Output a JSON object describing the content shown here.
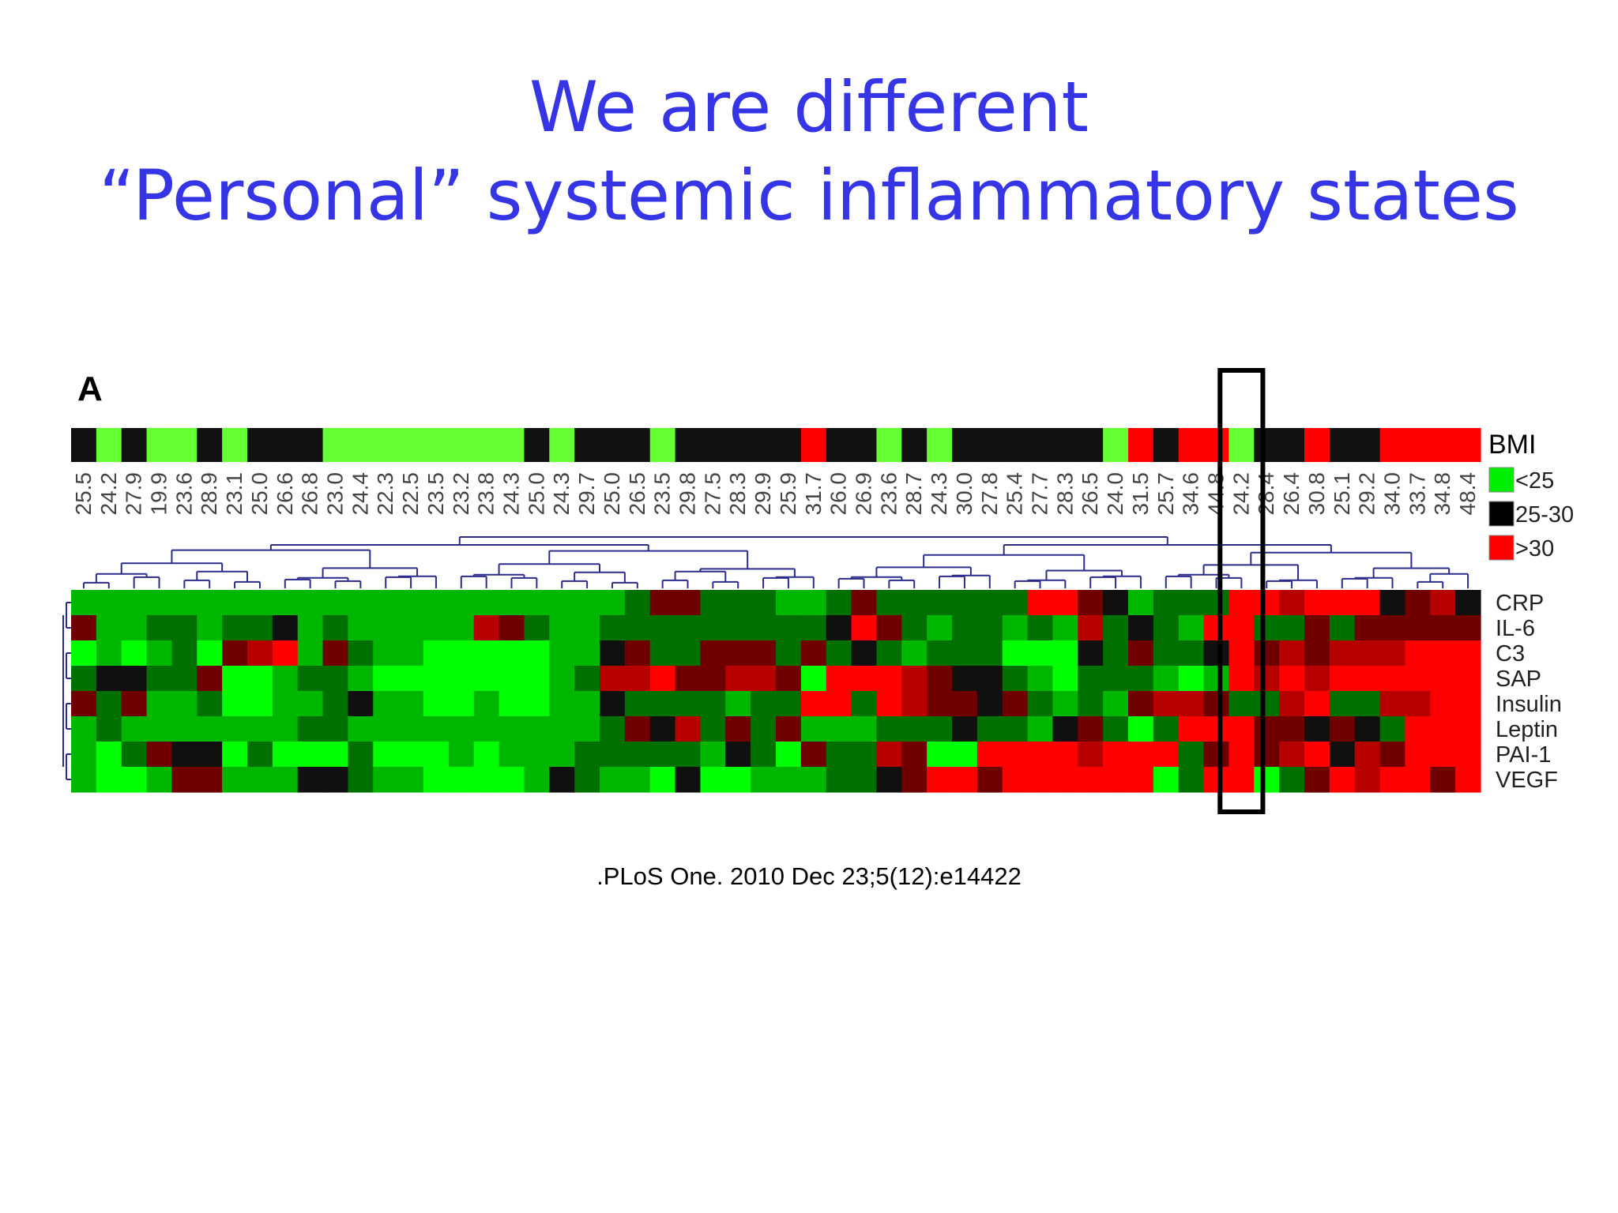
{
  "slide": {
    "title_line1": "We are different",
    "title_line2": "“Personal” systemic inflammatory states",
    "citation": ".PLoS One. 2010 Dec 23;5(12):e14422"
  },
  "colors": {
    "title": "#3535e6",
    "bmi_green": "#66ff33",
    "bmi_black": "#111111",
    "bmi_red": "#ff0000",
    "dendrogram": "#2b2b8a",
    "highlight_box": "#000000"
  },
  "chart_data": {
    "type": "heatmap",
    "panel_label": "A",
    "bmi_label": "BMI",
    "legend": [
      {
        "label": "<25",
        "color": "#00ee00"
      },
      {
        "label": "25-30",
        "color": "#000000"
      },
      {
        "label": ">30",
        "color": "#ff0000"
      }
    ],
    "columns": [
      "25.5",
      "24.2",
      "27.9",
      "19.9",
      "23.6",
      "28.9",
      "23.1",
      "25.0",
      "26.6",
      "26.8",
      "23.0",
      "24.4",
      "22.3",
      "22.5",
      "23.5",
      "23.2",
      "23.8",
      "24.3",
      "25.0",
      "24.3",
      "29.7",
      "25.0",
      "26.5",
      "23.5",
      "29.8",
      "27.5",
      "28.3",
      "29.9",
      "25.9",
      "31.7",
      "26.0",
      "26.9",
      "23.6",
      "28.7",
      "24.3",
      "30.0",
      "27.8",
      "25.4",
      "27.7",
      "28.3",
      "26.5",
      "24.0",
      "31.5",
      "25.7",
      "34.6",
      "44.8",
      "24.2",
      "28.4",
      "26.4",
      "30.8",
      "25.1",
      "29.2",
      "34.0",
      "33.7",
      "34.8",
      "48.4"
    ],
    "rows": [
      "CRP",
      "IL-6",
      "C3",
      "SAP",
      "Insulin",
      "Leptin",
      "PAI-1",
      "VEGF"
    ],
    "values": [
      [
        -2,
        -2,
        -2,
        -2,
        -2,
        -2,
        -2,
        -2,
        -2,
        -2,
        -2,
        -2,
        -2,
        -2,
        -2,
        -2,
        -2,
        -2,
        -2,
        -2,
        -2,
        -2,
        -1,
        1,
        1,
        -1,
        -1,
        -1,
        -2,
        -2,
        -1,
        1,
        -1,
        -1,
        -1,
        -1,
        -1,
        -1,
        3,
        3,
        1,
        0,
        -2,
        -1,
        -1,
        -1,
        3,
        3,
        2,
        3,
        3,
        3,
        0,
        1,
        2,
        0
      ],
      [
        1,
        -2,
        -2,
        -1,
        -1,
        -2,
        -1,
        -1,
        0,
        -2,
        -1,
        -2,
        -2,
        -2,
        -2,
        -2,
        2,
        1,
        -1,
        -2,
        -2,
        -1,
        -1,
        -1,
        -1,
        -1,
        -1,
        -1,
        -1,
        -1,
        0,
        3,
        1,
        -1,
        -2,
        -1,
        -1,
        -2,
        -1,
        -2,
        2,
        -1,
        0,
        -1,
        -2,
        3,
        3,
        -1,
        -1,
        1,
        -1,
        1,
        1,
        1,
        1,
        1
      ],
      [
        -3,
        -2,
        -3,
        -2,
        -1,
        -3,
        1,
        2,
        3,
        -2,
        1,
        -1,
        -2,
        -2,
        -3,
        -3,
        -3,
        -3,
        -3,
        -2,
        -2,
        0,
        1,
        -1,
        -1,
        1,
        1,
        1,
        -1,
        1,
        -1,
        0,
        -1,
        -2,
        -1,
        -1,
        -1,
        -3,
        -3,
        -3,
        0,
        -1,
        1,
        -1,
        -1,
        0,
        3,
        1,
        2,
        1,
        2,
        2,
        2,
        3,
        3,
        3
      ],
      [
        -1,
        0,
        0,
        -1,
        -1,
        1,
        -3,
        -3,
        -2,
        -1,
        -1,
        -2,
        -3,
        -3,
        -3,
        -3,
        -3,
        -3,
        -3,
        -2,
        -1,
        2,
        2,
        3,
        1,
        1,
        2,
        2,
        1,
        -3,
        3,
        3,
        3,
        2,
        1,
        0,
        0,
        -1,
        -2,
        -3,
        -1,
        -1,
        -1,
        -2,
        -3,
        -2,
        3,
        2,
        3,
        2,
        3,
        3,
        3,
        3,
        3,
        3
      ],
      [
        1,
        -1,
        1,
        -2,
        -2,
        -1,
        -3,
        -3,
        -2,
        -2,
        -1,
        0,
        -2,
        -2,
        -3,
        -3,
        -2,
        -3,
        -3,
        -2,
        -2,
        0,
        -1,
        -1,
        -1,
        -1,
        -2,
        -1,
        -1,
        3,
        3,
        -1,
        3,
        2,
        1,
        1,
        0,
        1,
        -1,
        -2,
        -1,
        -2,
        1,
        2,
        2,
        1,
        -1,
        -1,
        2,
        3,
        -1,
        -1,
        2,
        2,
        3,
        3
      ],
      [
        -2,
        -1,
        -2,
        -2,
        -2,
        -2,
        -2,
        -2,
        -2,
        -1,
        -1,
        -2,
        -2,
        -2,
        -2,
        -2,
        -2,
        -2,
        -2,
        -2,
        -2,
        -1,
        1,
        0,
        2,
        -1,
        1,
        -1,
        1,
        -2,
        -2,
        -2,
        -1,
        -1,
        -1,
        0,
        -1,
        -1,
        -2,
        0,
        1,
        -1,
        -3,
        -1,
        3,
        3,
        3,
        1,
        1,
        0,
        1,
        0,
        -1,
        3,
        3,
        3
      ],
      [
        -2,
        -3,
        -1,
        1,
        0,
        0,
        -3,
        -1,
        -3,
        -3,
        -3,
        -1,
        -3,
        -3,
        -3,
        -2,
        -3,
        -2,
        -2,
        -2,
        -1,
        -1,
        -1,
        -1,
        -1,
        -2,
        0,
        -1,
        -3,
        1,
        -1,
        -1,
        2,
        1,
        -3,
        -3,
        3,
        3,
        3,
        3,
        2,
        3,
        3,
        3,
        -1,
        1,
        3,
        1,
        2,
        3,
        0,
        2,
        1,
        3,
        3,
        3
      ],
      [
        -2,
        -3,
        -3,
        -2,
        1,
        1,
        -2,
        -2,
        -2,
        0,
        0,
        -1,
        -2,
        -2,
        -3,
        -3,
        -3,
        -3,
        -2,
        0,
        -1,
        -2,
        -2,
        -3,
        0,
        -3,
        -3,
        -2,
        -2,
        -2,
        -1,
        -1,
        0,
        1,
        3,
        3,
        1,
        3,
        3,
        3,
        3,
        3,
        3,
        -3,
        -1,
        3,
        3,
        -3,
        -1,
        1,
        3,
        2,
        3,
        3,
        1,
        3
      ]
    ],
    "highlighted_column": "24.2"
  }
}
